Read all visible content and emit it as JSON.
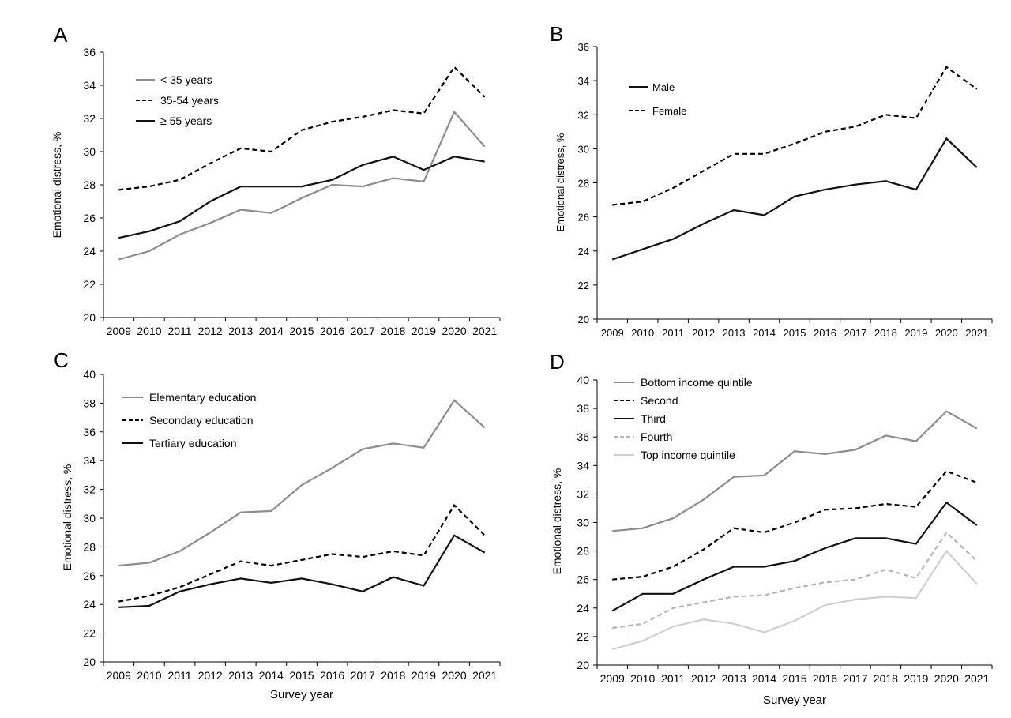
{
  "chart_data": [
    {
      "panel": "A",
      "type": "line",
      "x": [
        "2009",
        "2010",
        "2011",
        "2012",
        "2013",
        "2014",
        "2015",
        "2016",
        "2017",
        "2018",
        "2019",
        "2020",
        "2021"
      ],
      "ylabel": "Emotional distress, %",
      "xlabel": "",
      "ylim": [
        20,
        36
      ],
      "yticks": [
        20,
        22,
        24,
        26,
        28,
        30,
        32,
        34,
        36
      ],
      "legend_position": "top-left",
      "grid": false,
      "series": [
        {
          "name": "< 35 years",
          "color": "#8c8c8c",
          "dash": "solid",
          "values": [
            23.5,
            24.0,
            25.0,
            25.7,
            26.5,
            26.3,
            27.2,
            28.0,
            27.9,
            28.4,
            28.2,
            32.4,
            30.3
          ]
        },
        {
          "name": "35-54 years",
          "color": "#000000",
          "dash": "dashed",
          "values": [
            27.7,
            27.9,
            28.3,
            29.3,
            30.2,
            30.0,
            31.3,
            31.8,
            32.1,
            32.5,
            32.3,
            35.1,
            33.3
          ]
        },
        {
          "name": "≥ 55 years",
          "color": "#111111",
          "dash": "solid",
          "values": [
            24.8,
            25.2,
            25.8,
            27.0,
            27.9,
            27.9,
            27.9,
            28.3,
            29.2,
            29.7,
            28.9,
            29.7,
            29.4
          ]
        }
      ]
    },
    {
      "panel": "B",
      "type": "line",
      "x": [
        "2009",
        "2010",
        "2011",
        "2012",
        "2013",
        "2014",
        "2015",
        "2016",
        "2017",
        "2018",
        "2019",
        "2020",
        "2021"
      ],
      "ylabel": "Emotional distress, %",
      "xlabel": "",
      "ylim": [
        20,
        36
      ],
      "yticks": [
        20,
        22,
        24,
        26,
        28,
        30,
        32,
        34,
        36
      ],
      "legend_position": "top-left",
      "grid": false,
      "series": [
        {
          "name": "Male",
          "color": "#111111",
          "dash": "solid",
          "values": [
            23.5,
            24.1,
            24.7,
            25.6,
            26.4,
            26.1,
            27.2,
            27.6,
            27.9,
            28.1,
            27.6,
            30.6,
            28.9
          ]
        },
        {
          "name": "Female",
          "color": "#000000",
          "dash": "dashed",
          "values": [
            26.7,
            26.9,
            27.7,
            28.7,
            29.7,
            29.7,
            30.3,
            31.0,
            31.3,
            32.0,
            31.8,
            34.8,
            33.5
          ]
        }
      ]
    },
    {
      "panel": "C",
      "type": "line",
      "x": [
        "2009",
        "2010",
        "2011",
        "2012",
        "2013",
        "2014",
        "2015",
        "2016",
        "2017",
        "2018",
        "2019",
        "2020",
        "2021"
      ],
      "ylabel": "Emotional distress, %",
      "xlabel": "Survey year",
      "ylim": [
        20,
        40
      ],
      "yticks": [
        20,
        22,
        24,
        26,
        28,
        30,
        32,
        34,
        36,
        38,
        40
      ],
      "legend_position": "top-left",
      "grid": false,
      "series": [
        {
          "name": "Elementary education",
          "color": "#8c8c8c",
          "dash": "solid",
          "values": [
            26.7,
            26.9,
            27.7,
            29.0,
            30.4,
            30.5,
            32.3,
            33.5,
            34.8,
            35.2,
            34.9,
            38.2,
            36.3
          ]
        },
        {
          "name": "Secondary education",
          "color": "#000000",
          "dash": "dashed",
          "values": [
            24.2,
            24.6,
            25.2,
            26.1,
            27.0,
            26.7,
            27.1,
            27.5,
            27.3,
            27.7,
            27.4,
            30.9,
            28.8
          ]
        },
        {
          "name": "Tertiary education",
          "color": "#111111",
          "dash": "solid",
          "values": [
            23.8,
            23.9,
            24.9,
            25.4,
            25.8,
            25.5,
            25.8,
            25.4,
            24.9,
            25.9,
            25.3,
            28.8,
            27.6
          ]
        }
      ]
    },
    {
      "panel": "D",
      "type": "line",
      "x": [
        "2009",
        "2010",
        "2011",
        "2012",
        "2013",
        "2014",
        "2015",
        "2016",
        "2017",
        "2018",
        "2019",
        "2020",
        "2021"
      ],
      "ylabel": "Emotional distress, %",
      "xlabel": "Survey year",
      "ylim": [
        20,
        40
      ],
      "yticks": [
        20,
        22,
        24,
        26,
        28,
        30,
        32,
        34,
        36,
        38,
        40
      ],
      "legend_position": "top-left",
      "grid": false,
      "series": [
        {
          "name": "Bottom income quintile",
          "color": "#8c8c8c",
          "dash": "solid",
          "values": [
            29.4,
            29.6,
            30.3,
            31.6,
            33.2,
            33.3,
            35.0,
            34.8,
            35.1,
            36.1,
            35.7,
            37.8,
            36.6
          ]
        },
        {
          "name": "Second",
          "color": "#000000",
          "dash": "dashed",
          "values": [
            26.0,
            26.2,
            26.9,
            28.1,
            29.6,
            29.3,
            30.0,
            30.9,
            31.0,
            31.3,
            31.1,
            33.6,
            32.8
          ]
        },
        {
          "name": "Third",
          "color": "#111111",
          "dash": "solid",
          "values": [
            23.8,
            25.0,
            25.0,
            26.0,
            26.9,
            26.9,
            27.3,
            28.2,
            28.9,
            28.9,
            28.5,
            31.4,
            29.8
          ]
        },
        {
          "name": "Fourth",
          "color": "#b4b4b4",
          "dash": "dashed",
          "values": [
            22.6,
            22.9,
            24.0,
            24.4,
            24.8,
            24.9,
            25.4,
            25.8,
            26.0,
            26.7,
            26.1,
            29.3,
            27.3
          ]
        },
        {
          "name": "Top income quintile",
          "color": "#cfcfcf",
          "dash": "solid",
          "values": [
            21.1,
            21.7,
            22.7,
            23.2,
            22.9,
            22.3,
            23.1,
            24.2,
            24.6,
            24.8,
            24.7,
            28.0,
            25.7
          ]
        }
      ]
    }
  ]
}
